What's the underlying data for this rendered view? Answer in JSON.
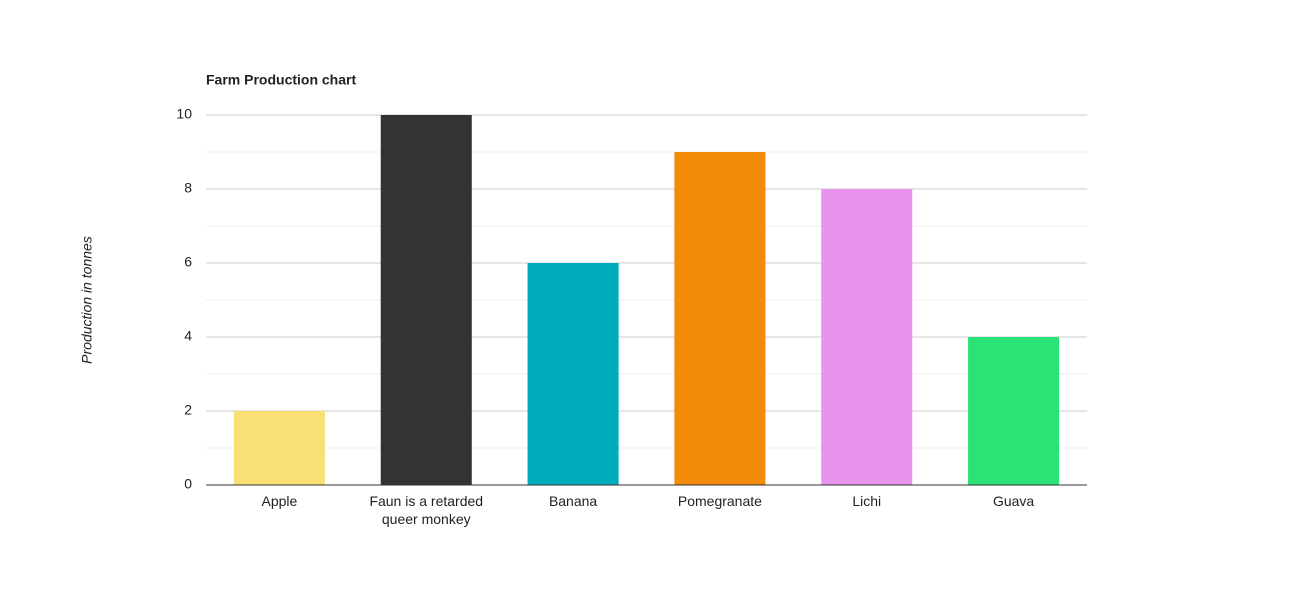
{
  "chart_data": {
    "type": "bar",
    "title": "Farm Production chart",
    "y_label": "Production in tonnes",
    "categories": [
      "Apple",
      "Faun is a retarded queer monkey",
      "Banana",
      "Pomegranate",
      "Lichi",
      "Guava"
    ],
    "values": [
      2,
      10,
      6,
      9,
      8,
      4
    ],
    "colors": [
      "#f9e076",
      "#333333",
      "#00abbb",
      "#f28a0a",
      "#e894ee",
      "#2ae276"
    ],
    "ylim": [
      0,
      10
    ],
    "yticks": [
      0,
      2,
      4,
      6,
      8,
      10
    ],
    "grid": true,
    "minor_grid": true
  }
}
